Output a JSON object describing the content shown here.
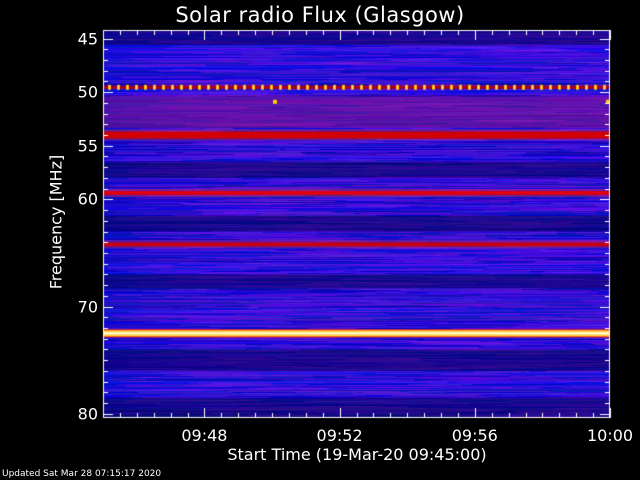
{
  "chart_data": {
    "type": "heatmap",
    "title": "Solar radio Flux (Glasgow)",
    "xlabel": "Start Time (19-Mar-20 09:45:00)",
    "ylabel": "Frequency [MHz]",
    "x_tick_labels": [
      "09:48",
      "09:52",
      "09:56",
      "10:00"
    ],
    "x_ticks_minutes_after_start": [
      3,
      7,
      11,
      15
    ],
    "x_range_minutes_after_start": [
      0,
      15
    ],
    "y_tick_labels": [
      "45",
      "50",
      "55",
      "60",
      "70",
      "80"
    ],
    "y_ticks": [
      45,
      50,
      55,
      60,
      70,
      80
    ],
    "y_range": [
      44.2,
      80.4
    ],
    "y_axis_direction": "increasing downward",
    "colormap": "blue-red-yellow-white",
    "background_intensity": "blue",
    "bright_bands": [
      {
        "frequency_mhz": 49.5,
        "intensity": "dotted yellow/orange markers"
      },
      {
        "frequency_mhz": 54.0,
        "intensity": "red"
      },
      {
        "frequency_mhz": 59.4,
        "intensity": "red"
      },
      {
        "frequency_mhz": 64.2,
        "intensity": "red"
      },
      {
        "frequency_mhz": 72.5,
        "intensity": "yellow-white"
      }
    ],
    "grid": false
  },
  "footer": "Updated Sat Mar 28 07:15:17 2020",
  "colors": {
    "background": "#000000",
    "low": "#1010b8",
    "mid": "#c00000",
    "high": "#ffffd0"
  }
}
